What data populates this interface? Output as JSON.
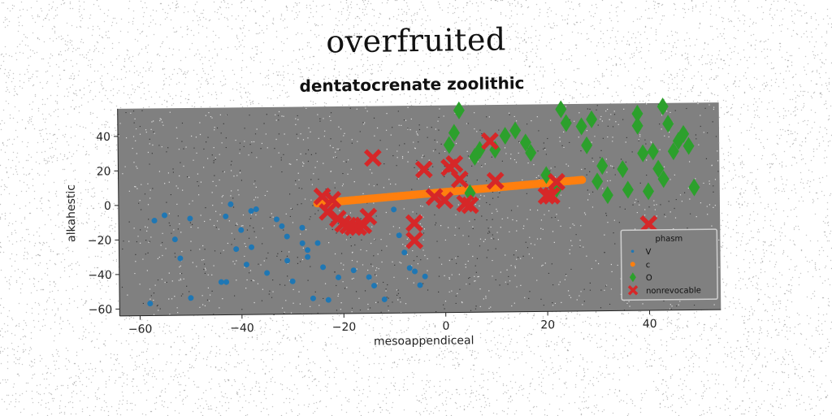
{
  "suptitle": "overfruited",
  "chart_data": {
    "type": "scatter",
    "title": "dentatocrenate zoolithic",
    "xlabel": "mesoappendiceal",
    "ylabel": "alkahestic",
    "xlim": [
      -64,
      54
    ],
    "ylim": [
      -64,
      56
    ],
    "xticks": [
      -60,
      -40,
      -20,
      0,
      20,
      40
    ],
    "yticks": [
      -60,
      -40,
      -20,
      0,
      20,
      40
    ],
    "grid": false,
    "background": "#808080",
    "legend": {
      "title": "phasm",
      "position": "lower-right",
      "entries": [
        "V",
        "c",
        "O",
        "nonrevocable"
      ]
    },
    "series": [
      {
        "name": "V",
        "color": "#1f77b4",
        "marker": "circle",
        "points": [
          [
            -58,
            -57
          ],
          [
            -57,
            -9
          ],
          [
            -55,
            -6
          ],
          [
            -53,
            -20
          ],
          [
            -52,
            -31
          ],
          [
            -50,
            -8
          ],
          [
            -50,
            -54
          ],
          [
            -44,
            -45
          ],
          [
            -43,
            -45
          ],
          [
            -43,
            -7
          ],
          [
            -42,
            0
          ],
          [
            -41,
            -26
          ],
          [
            -40,
            -15
          ],
          [
            -39,
            -35
          ],
          [
            -38,
            -4
          ],
          [
            -38,
            -25
          ],
          [
            -37,
            -3
          ],
          [
            -35,
            -40
          ],
          [
            -33,
            -9
          ],
          [
            -32,
            -13
          ],
          [
            -31,
            -19
          ],
          [
            -31,
            -33
          ],
          [
            -30,
            -45
          ],
          [
            -28,
            -14
          ],
          [
            -28,
            -23
          ],
          [
            -27,
            -27
          ],
          [
            -27,
            -31
          ],
          [
            -26,
            -55
          ],
          [
            -25,
            -23
          ],
          [
            -24,
            -37
          ],
          [
            -23,
            -56
          ],
          [
            -21,
            -43
          ],
          [
            -18,
            -39
          ],
          [
            -17,
            -14
          ],
          [
            -15,
            -43
          ],
          [
            -14,
            -48
          ],
          [
            -12,
            -56
          ],
          [
            -10,
            -4
          ],
          [
            -9,
            -19
          ],
          [
            -8,
            -29
          ],
          [
            -7,
            -38
          ],
          [
            -6,
            -40
          ],
          [
            -5,
            -48
          ],
          [
            -4,
            -43
          ]
        ]
      },
      {
        "name": "c",
        "color": "#ff7f0e",
        "marker": "circle",
        "line": {
          "from": [
            -25,
            0
          ],
          "to": [
            27,
            12
          ]
        }
      },
      {
        "name": "O",
        "color": "#2ca02c",
        "marker": "diamond",
        "points": [
          [
            1,
            33
          ],
          [
            2,
            40
          ],
          [
            3,
            53
          ],
          [
            5,
            5
          ],
          [
            6,
            26
          ],
          [
            7,
            30
          ],
          [
            10,
            30
          ],
          [
            12,
            38
          ],
          [
            14,
            41
          ],
          [
            16,
            34
          ],
          [
            17,
            28
          ],
          [
            20,
            15
          ],
          [
            22,
            7
          ],
          [
            23,
            53
          ],
          [
            24,
            45
          ],
          [
            27,
            43
          ],
          [
            28,
            32
          ],
          [
            29,
            47
          ],
          [
            30,
            11
          ],
          [
            31,
            20
          ],
          [
            32,
            3
          ],
          [
            35,
            18
          ],
          [
            36,
            6
          ],
          [
            38,
            50
          ],
          [
            38,
            43
          ],
          [
            39,
            27
          ],
          [
            40,
            5
          ],
          [
            41,
            28
          ],
          [
            42,
            18
          ],
          [
            43,
            54
          ],
          [
            44,
            44
          ],
          [
            45,
            28
          ],
          [
            46,
            34
          ],
          [
            47,
            38
          ],
          [
            48,
            31
          ],
          [
            49,
            7
          ],
          [
            43,
            12
          ]
        ]
      },
      {
        "name": "nonrevocable",
        "color": "#d62728",
        "marker": "x",
        "points": [
          [
            -24,
            4
          ],
          [
            -23,
            -5
          ],
          [
            -22,
            2
          ],
          [
            -21,
            -9
          ],
          [
            -20,
            -12
          ],
          [
            -19,
            -13
          ],
          [
            -18,
            -14
          ],
          [
            -17,
            -14
          ],
          [
            -16,
            -13
          ],
          [
            -15,
            -8
          ],
          [
            -14,
            26
          ],
          [
            -6,
            -12
          ],
          [
            -6,
            -22
          ],
          [
            -4,
            19
          ],
          [
            -2,
            3
          ],
          [
            0,
            1
          ],
          [
            1,
            20
          ],
          [
            2,
            22
          ],
          [
            3,
            13
          ],
          [
            4,
            -1
          ],
          [
            5,
            -2
          ],
          [
            9,
            35
          ],
          [
            10,
            12
          ],
          [
            20,
            3
          ],
          [
            21,
            3
          ],
          [
            22,
            11
          ],
          [
            40,
            -14
          ]
        ]
      }
    ]
  }
}
